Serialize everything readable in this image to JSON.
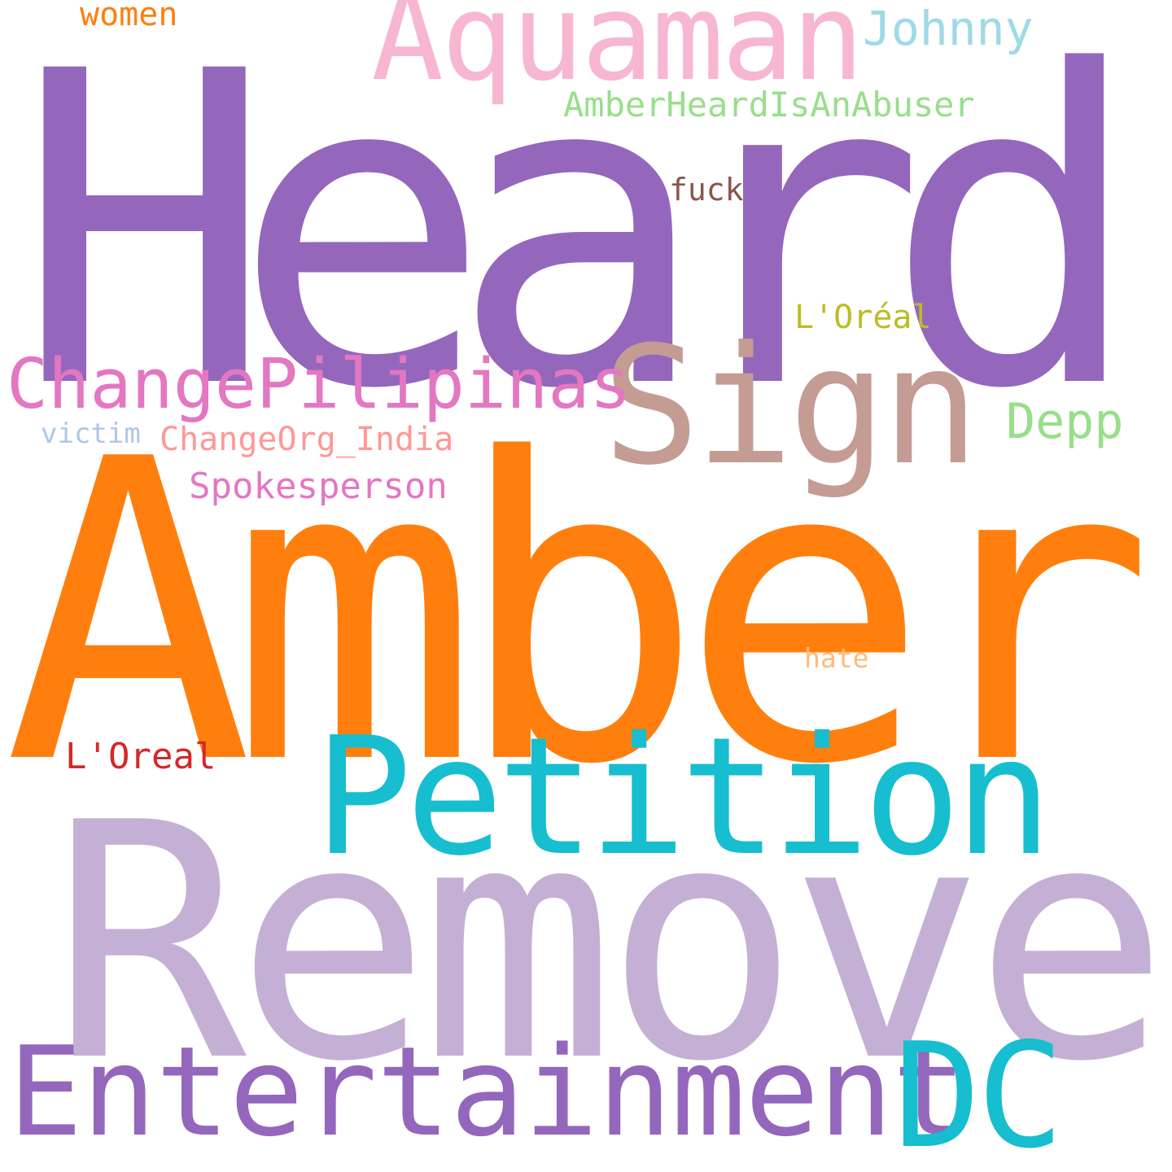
{
  "word_cloud": {
    "background_color": "#ffffff",
    "words": {
      "heard": {
        "text": "Heard",
        "color": "#9467bd"
      },
      "amber": {
        "text": "Amber",
        "color": "#ff7f0e"
      },
      "remove": {
        "text": "Remove",
        "color": "#c5b0d5"
      },
      "petition": {
        "text": "Petition",
        "color": "#17becf"
      },
      "sign": {
        "text": "Sign",
        "color": "#c49c94"
      },
      "aquaman": {
        "text": "Aquaman",
        "color": "#f7b6d2"
      },
      "entertainment": {
        "text": "Entertainment",
        "color": "#9467bd"
      },
      "dc": {
        "text": "DC",
        "color": "#17becf"
      },
      "changepilipinas": {
        "text": "ChangePilipinas",
        "color": "#e377c2"
      },
      "johnny": {
        "text": "Johnny",
        "color": "#9edae5"
      },
      "amberheardisanabuser": {
        "text": "AmberHeardIsAnAbuser",
        "color": "#98df8a"
      },
      "depp": {
        "text": "Depp",
        "color": "#98df8a"
      },
      "changeorg_india": {
        "text": "ChangeOrg_India",
        "color": "#ff9896"
      },
      "spokesperson": {
        "text": "Spokesperson",
        "color": "#e377c2"
      },
      "women": {
        "text": "women",
        "color": "#ff7f0e"
      },
      "fuck": {
        "text": "fuck",
        "color": "#8c564b"
      },
      "loreal_accent": {
        "text": "L'Oréal",
        "color": "#bcbd22"
      },
      "victim": {
        "text": "victim",
        "color": "#aec7e8"
      },
      "hate": {
        "text": "hate",
        "color": "#ffbb78"
      },
      "loreal": {
        "text": "L'Oreal",
        "color": "#d62728"
      }
    }
  }
}
